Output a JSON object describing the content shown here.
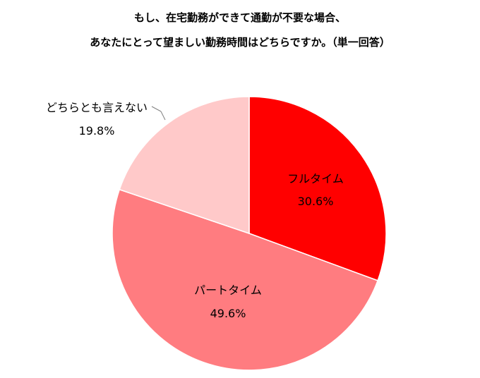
{
  "chart_data": {
    "type": "pie",
    "title_lines": [
      "もし、在宅勤務ができて通勤が不要な場合、",
      "あなたにとって望ましい勤務時間はどちらですか。（単一回答）"
    ],
    "categories": [
      "フルタイム",
      "パートタイム",
      "どちらとも言えない"
    ],
    "values": [
      30.6,
      49.6,
      19.8
    ],
    "value_labels": [
      "30.6%",
      "49.6%",
      "19.8%"
    ],
    "colors": [
      "#ff0000",
      "#ff7c80",
      "#ffc9c9"
    ],
    "start_angle": "12 o'clock",
    "direction": "clockwise"
  }
}
